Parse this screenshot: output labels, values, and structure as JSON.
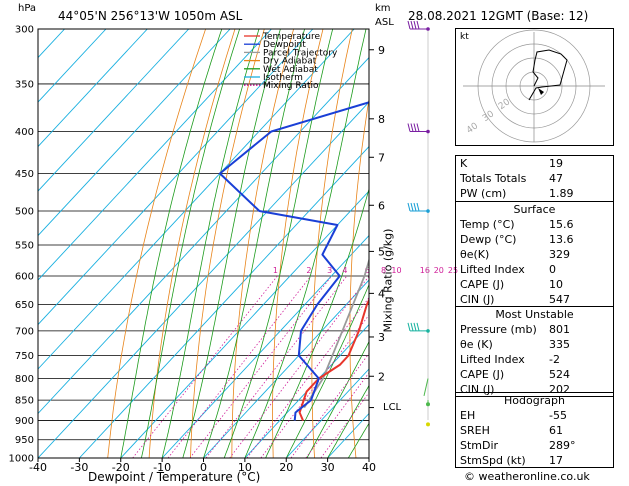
{
  "header": {
    "hpa_unit": "hPa",
    "location": "44°05'N  256°13'W  1050m  ASL",
    "km_unit": "km",
    "asl_unit": "ASL",
    "datetime": "28.08.2021  12GMT  (Base: 12)"
  },
  "chart_data": {
    "type": "skew-t",
    "xlabel": "Dewpoint / Temperature (°C)",
    "ylabel_right": "Mixing Ratio (g/kg)",
    "x_ticks": [
      -40,
      -30,
      -20,
      -10,
      0,
      10,
      20,
      30,
      40
    ],
    "x_tick_labels": [
      "-40",
      "-30",
      "-20",
      "-10",
      "0",
      "10",
      "20",
      "30",
      "40"
    ],
    "pressure_levels": [
      300,
      350,
      400,
      450,
      500,
      550,
      600,
      650,
      700,
      750,
      800,
      850,
      900,
      950,
      1000
    ],
    "pressure_labels": [
      "300",
      "350",
      "400",
      "450",
      "500",
      "550",
      "600",
      "650",
      "700",
      "750",
      "800",
      "850",
      "900",
      "950",
      "1000"
    ],
    "km_ticks": [
      {
        "p": 318,
        "label": "9"
      },
      {
        "p": 386,
        "label": "8"
      },
      {
        "p": 430,
        "label": "7"
      },
      {
        "p": 492,
        "label": "6"
      },
      {
        "p": 560,
        "label": "5"
      },
      {
        "p": 630,
        "label": "4"
      },
      {
        "p": 712,
        "label": "3"
      },
      {
        "p": 795,
        "label": "2"
      }
    ],
    "lcl_label": "LCL",
    "lcl_p": 868,
    "mixing_ratio_labels": [
      "1",
      "2",
      "3",
      "4",
      "6",
      "8",
      "10",
      "16",
      "20",
      "25"
    ],
    "mixing_ratios": [
      1,
      2,
      3,
      4,
      6,
      8,
      10,
      16,
      20,
      25
    ],
    "legend": [
      {
        "label": "Temperature",
        "color": "#e8352b"
      },
      {
        "label": "Dewpoint",
        "color": "#1a3fd6"
      },
      {
        "label": "Parcel Trajectory",
        "color": "#9a9a9a"
      },
      {
        "label": "Dry Adiabat",
        "color": "#e8841a"
      },
      {
        "label": "Wet Adiabat",
        "color": "#1c9b1c"
      },
      {
        "label": "Isotherm",
        "color": "#1ab0e0"
      },
      {
        "label": "Mixing Ratio",
        "color": "#d0209a"
      }
    ],
    "temperature": [
      {
        "p": 300,
        "t": -38
      },
      {
        "p": 350,
        "t": -30
      },
      {
        "p": 400,
        "t": -22
      },
      {
        "p": 450,
        "t": -14
      },
      {
        "p": 500,
        "t": -8
      },
      {
        "p": 550,
        "t": -3
      },
      {
        "p": 600,
        "t": 2
      },
      {
        "p": 650,
        "t": 5
      },
      {
        "p": 700,
        "t": 9
      },
      {
        "p": 750,
        "t": 12
      },
      {
        "p": 770,
        "t": 12
      },
      {
        "p": 800,
        "t": 10
      },
      {
        "p": 830,
        "t": 10
      },
      {
        "p": 880,
        "t": 13
      },
      {
        "p": 900,
        "t": 15.6
      }
    ],
    "dewpoint": [
      {
        "p": 300,
        "t": -42
      },
      {
        "p": 330,
        "t": -38
      },
      {
        "p": 345,
        "t": -42
      },
      {
        "p": 365,
        "t": -38
      },
      {
        "p": 400,
        "t": -57
      },
      {
        "p": 450,
        "t": -60
      },
      {
        "p": 500,
        "t": -42
      },
      {
        "p": 520,
        "t": -20
      },
      {
        "p": 565,
        "t": -17
      },
      {
        "p": 600,
        "t": -8
      },
      {
        "p": 650,
        "t": -7
      },
      {
        "p": 700,
        "t": -5
      },
      {
        "p": 750,
        "t": 0
      },
      {
        "p": 800,
        "t": 10
      },
      {
        "p": 850,
        "t": 13
      },
      {
        "p": 880,
        "t": 12
      },
      {
        "p": 900,
        "t": 13.6
      }
    ],
    "parcel": [
      {
        "p": 300,
        "t": -42
      },
      {
        "p": 400,
        "t": -25
      },
      {
        "p": 500,
        "t": -12
      },
      {
        "p": 600,
        "t": -2
      },
      {
        "p": 700,
        "t": 5
      },
      {
        "p": 800,
        "t": 11
      },
      {
        "p": 868,
        "t": 13
      }
    ]
  },
  "hodograph": {
    "unit": "kt",
    "ring_labels": [
      "40",
      "30",
      "20"
    ]
  },
  "indices": {
    "rows": [
      {
        "label": "K",
        "value": "19"
      },
      {
        "label": "Totals Totals",
        "value": "47"
      },
      {
        "label": "PW (cm)",
        "value": "1.89"
      }
    ]
  },
  "surface": {
    "title": "Surface",
    "rows": [
      {
        "label": "Temp (°C)",
        "value": "15.6"
      },
      {
        "label": "Dewp (°C)",
        "value": "13.6"
      },
      {
        "label": "θe(K)",
        "value": "329"
      },
      {
        "label": "Lifted Index",
        "value": "0"
      },
      {
        "label": "CAPE (J)",
        "value": "10"
      },
      {
        "label": "CIN (J)",
        "value": "547"
      }
    ]
  },
  "most_unstable": {
    "title": "Most Unstable",
    "rows": [
      {
        "label": "Pressure (mb)",
        "value": "801"
      },
      {
        "label": "θe (K)",
        "value": "335"
      },
      {
        "label": "Lifted Index",
        "value": "-2"
      },
      {
        "label": "CAPE (J)",
        "value": "524"
      },
      {
        "label": "CIN (J)",
        "value": "202"
      }
    ]
  },
  "hodo_table": {
    "title": "Hodograph",
    "rows": [
      {
        "label": "EH",
        "value": "-55"
      },
      {
        "label": "SREH",
        "value": "61"
      },
      {
        "label": "StmDir",
        "value": "289°"
      },
      {
        "label": "StmSpd (kt)",
        "value": "17"
      }
    ]
  },
  "copyright": "© weatheronline.co.uk"
}
